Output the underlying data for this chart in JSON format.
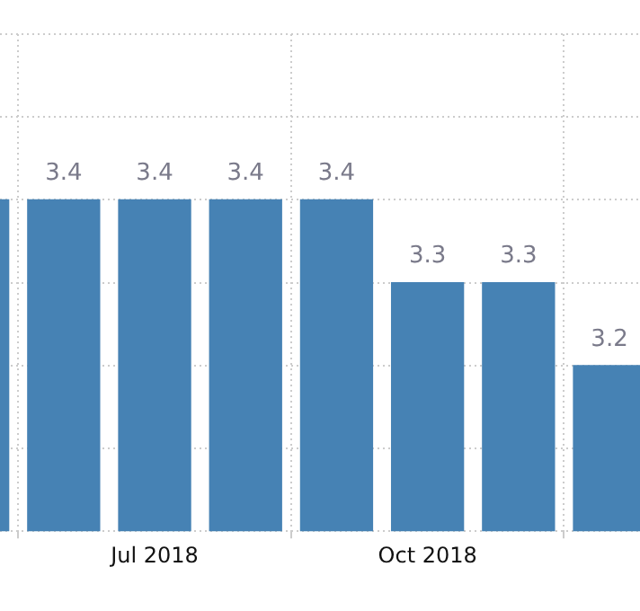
{
  "chart_data": {
    "type": "bar",
    "categories": [
      null,
      null,
      "Jul 2018",
      null,
      null,
      "Oct 2018",
      null,
      null
    ],
    "values": [
      3.4,
      3.4,
      3.4,
      3.4,
      3.4,
      3.3,
      3.3,
      3.2
    ],
    "value_labels": [
      null,
      "3.4",
      "3.4",
      "3.4",
      "3.4",
      "3.3",
      "3.3",
      "3.2"
    ],
    "color": "#4682b4",
    "ylim": [
      3.0,
      3.6
    ],
    "yticks": [
      {
        "value": 3.0,
        "label": null
      },
      {
        "value": 3.1,
        "label": null
      },
      {
        "value": 3.2,
        "label": null
      },
      {
        "value": 3.3,
        "label": null
      },
      {
        "value": 3.4,
        "label": null
      },
      {
        "value": 3.5,
        "label": null
      },
      {
        "value": 3.6,
        "label": null
      }
    ],
    "grid": true,
    "legend": false,
    "tick_labels": "x"
  }
}
